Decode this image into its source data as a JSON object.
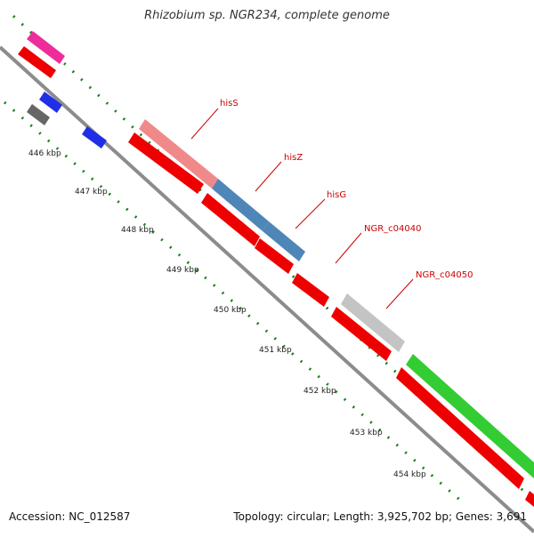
{
  "title": "Rhizobium sp. NGR234, complete genome",
  "footer": {
    "accession": "Accession: NC_012587",
    "summary": "Topology: circular; Length: 3,925,702 bp; Genes: 3,691"
  },
  "ruler_labels": [
    "446 kbp",
    "447 kbp",
    "448 kbp",
    "449 kbp",
    "450 kbp",
    "451 kbp",
    "452 kbp",
    "453 kbp",
    "454 kbp"
  ],
  "gene_labels": [
    "hisS",
    "hisZ",
    "hisG",
    "NGR_c04040",
    "NGR_c04050"
  ],
  "colors": {
    "backbone": "#8c8c8c",
    "cds": "#ee0000",
    "hisS": "#f08a8a",
    "his_blue": "#4f86b8",
    "grey_gene": "#c4c4c4",
    "green_gene": "#33cc33",
    "magenta": "#ee2d9a",
    "blue_small": "#1f2fe6",
    "dark_grey": "#666666",
    "tick": "#1a7f1a",
    "label": "#cc0000"
  }
}
